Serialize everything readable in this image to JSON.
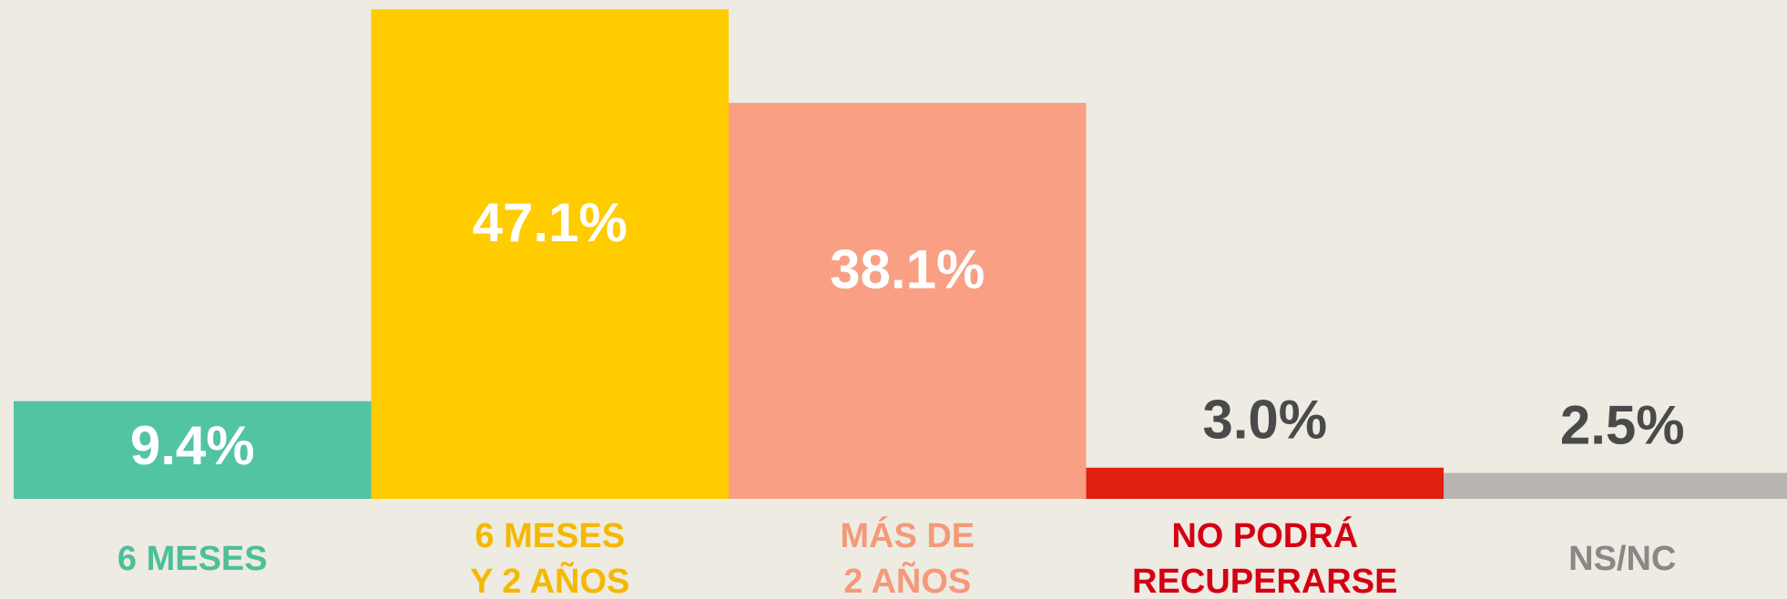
{
  "chart_data": {
    "type": "bar",
    "categories": [
      [
        "6 MESES"
      ],
      [
        "6 MESES",
        "Y 2 AÑOS"
      ],
      [
        "MÁS DE",
        "2 AÑOS"
      ],
      [
        "NO PODRÁ",
        "RECUPERARSE"
      ],
      [
        "NS/NC"
      ]
    ],
    "values": [
      9.4,
      47.1,
      38.1,
      3.0,
      2.5
    ],
    "value_labels": [
      "9.4%",
      "47.1%",
      "38.1%",
      "3.0%",
      "2.5%"
    ],
    "colors": [
      "#52c4a4",
      "#ffcc00",
      "#f9a084",
      "#e02010",
      "#bab5b3"
    ],
    "label_colors": [
      "#4dbf99",
      "#f5b800",
      "#f39a7a",
      "#d40012",
      "#8a8886"
    ],
    "ylim": [
      0,
      48
    ]
  }
}
